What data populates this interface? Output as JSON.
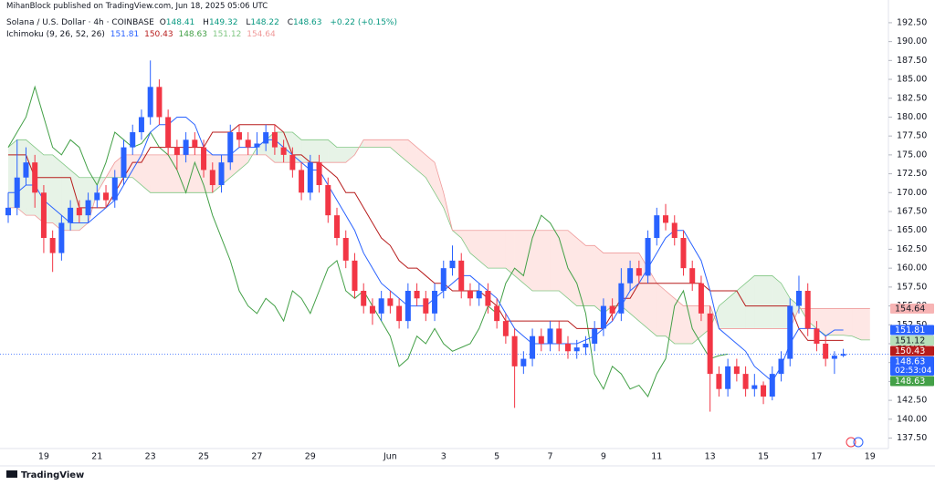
{
  "chart_data": {
    "type": "candlestick",
    "publisher": "MihanBlock published on TradingView.com, Jun 18, 2025 05:06 UTC",
    "title": "Solana / U.S. Dollar · 4h · COINBASE",
    "ohlc_labels": [
      "O",
      "H",
      "L",
      "C"
    ],
    "change": "+0.22 (+0.15%)",
    "indicator": "Ichimoku (9, 26, 52, 26)",
    "countdown": "02:53:04",
    "logo": "TradingView",
    "up_color": "#2962ff",
    "down_color": "#f23645",
    "categories": [
      null,
      null,
      null,
      null,
      "19",
      null,
      null,
      null,
      null,
      null,
      "21",
      null,
      null,
      null,
      null,
      null,
      "23",
      null,
      null,
      null,
      null,
      null,
      "25",
      null,
      null,
      null,
      null,
      null,
      "27",
      null,
      null,
      null,
      null,
      null,
      "29",
      null,
      null,
      null,
      null,
      null,
      null,
      null,
      null,
      "Jun",
      null,
      null,
      null,
      null,
      null,
      "3",
      null,
      null,
      null,
      null,
      null,
      "5",
      null,
      null,
      null,
      null,
      null,
      "7",
      null,
      null,
      null,
      null,
      null,
      "9",
      null,
      null,
      null,
      null,
      null,
      "11",
      null,
      null,
      null,
      null,
      null,
      "13",
      null,
      null,
      null,
      null,
      null,
      "15",
      null,
      null,
      null,
      null,
      null,
      "17",
      null,
      null,
      null,
      null,
      null,
      "19"
    ],
    "open": [
      167,
      168,
      172,
      174,
      170,
      164,
      162,
      166,
      168,
      167,
      169,
      170,
      169,
      172,
      176,
      178,
      180,
      184,
      180,
      176,
      175,
      177,
      176,
      173,
      171,
      174,
      178,
      177,
      176,
      176.5,
      178,
      176,
      175,
      173,
      170,
      174,
      171,
      167,
      164,
      161,
      157,
      155,
      154,
      156,
      155,
      153,
      157,
      156,
      154,
      157,
      160,
      161,
      157,
      156,
      157,
      155,
      153,
      151,
      147,
      148,
      151,
      150,
      152,
      150,
      149,
      149.5,
      150,
      152,
      155,
      154,
      158,
      160,
      159,
      164,
      167,
      166,
      164,
      160,
      158,
      154,
      146,
      144,
      147,
      146,
      144,
      144.5,
      143,
      146,
      148,
      155,
      157,
      152,
      150,
      148,
      148.41,
      null,
      null,
      null
    ],
    "high": [
      170,
      177,
      176,
      175,
      171,
      165,
      167,
      169,
      169,
      170,
      171,
      171,
      173,
      177,
      179,
      181,
      187.5,
      185,
      181,
      177,
      178,
      178,
      177,
      174,
      175,
      179,
      179,
      178,
      178,
      179,
      179,
      177,
      176,
      174,
      175,
      175,
      172,
      168,
      165,
      162,
      158,
      156,
      157,
      157,
      156,
      158,
      158,
      157,
      158,
      161,
      163,
      162,
      158,
      158,
      158,
      156,
      154,
      152,
      149,
      152,
      152,
      153,
      153,
      151,
      150.5,
      151,
      153,
      156,
      156,
      160,
      161,
      161,
      165,
      168,
      168.5,
      167,
      165,
      161,
      159,
      155,
      147,
      148,
      148,
      147,
      146,
      145,
      147,
      149,
      156,
      159,
      158,
      153,
      151,
      149,
      149.32,
      null,
      null,
      null
    ],
    "low": [
      166,
      167,
      171,
      168,
      162,
      159.5,
      161,
      165,
      166,
      166,
      168,
      168,
      168,
      171,
      175,
      177,
      179,
      179,
      175,
      173,
      174,
      175,
      172,
      170,
      170,
      173,
      176,
      175,
      175,
      175.5,
      175,
      174,
      172,
      169,
      169,
      170,
      166,
      163,
      160,
      156,
      154,
      152.5,
      153,
      154,
      152,
      152,
      155,
      153,
      153,
      156,
      159,
      156,
      155,
      155,
      154,
      152,
      150,
      141.5,
      146,
      147,
      149,
      149,
      149,
      148,
      148,
      148.5,
      149,
      151,
      153,
      153,
      157,
      158,
      158,
      163,
      165,
      163,
      159,
      157,
      153,
      141,
      143,
      143,
      145,
      143,
      143,
      142,
      142.5,
      145,
      147,
      154,
      151,
      149,
      147,
      146,
      148.22,
      null,
      null,
      null
    ],
    "close": [
      168,
      172,
      174,
      170,
      164,
      162,
      166,
      168,
      167,
      169,
      170,
      169,
      172,
      176,
      178,
      180,
      184,
      180,
      176,
      175,
      177,
      176,
      173,
      171,
      174,
      178,
      177,
      176,
      176.5,
      178,
      176,
      175,
      173,
      170,
      174,
      171,
      167,
      164,
      161,
      157,
      155,
      154,
      156,
      155,
      153,
      157,
      156,
      154,
      157,
      160,
      161,
      157,
      156,
      157,
      155,
      153,
      151,
      147,
      148,
      151,
      150,
      152,
      150,
      149,
      149.5,
      150,
      152,
      155,
      154,
      158,
      160,
      159,
      164,
      167,
      166,
      164,
      160,
      158,
      154,
      146,
      144,
      147,
      146,
      144,
      144.5,
      143,
      146,
      148,
      155,
      157,
      152,
      150,
      148,
      148.41,
      148.63,
      null,
      null,
      null
    ],
    "series": [
      {
        "color": "#2962ff",
        "values": [
          170,
          170,
          171,
          171,
          169,
          168,
          167,
          166,
          166,
          166,
          167,
          168,
          169,
          171,
          173,
          175,
          178,
          179,
          179,
          180,
          180,
          179,
          176,
          175,
          175,
          175,
          176,
          176,
          176,
          177,
          177,
          176,
          175,
          174,
          173,
          173,
          171,
          169,
          167,
          165,
          162,
          160,
          158,
          157,
          156,
          155,
          155,
          155,
          156,
          157,
          158,
          159,
          159,
          158,
          157,
          156,
          154,
          152,
          151,
          150,
          150,
          150,
          150,
          150,
          150,
          150.5,
          151,
          152,
          153,
          155,
          157,
          158,
          160,
          162,
          164,
          165,
          165,
          163,
          161,
          157,
          152,
          151,
          150,
          149,
          147,
          146,
          145,
          147,
          150,
          152,
          152,
          152,
          151,
          151.81,
          151.81,
          null,
          null,
          null
        ]
      },
      {
        "color": "#b71c1c",
        "values": [
          175,
          175,
          175,
          172,
          172,
          172,
          172,
          172,
          168,
          168,
          168,
          168,
          170,
          172,
          174,
          174,
          176,
          176,
          176,
          176,
          176,
          176,
          176,
          178,
          178,
          178,
          179,
          179,
          179,
          179,
          179,
          178,
          175,
          175,
          174,
          174,
          173,
          172,
          170,
          170,
          168,
          166,
          164,
          163,
          161,
          160,
          160,
          159,
          158,
          158,
          157,
          157,
          157,
          157,
          156,
          155,
          153,
          153,
          153,
          153,
          153,
          153,
          153,
          153,
          152,
          152,
          152,
          152,
          154,
          156,
          156,
          158,
          158,
          158,
          158,
          158,
          158,
          158,
          158,
          157,
          157,
          157,
          157,
          155,
          155,
          155,
          155,
          155,
          155,
          152,
          150.43,
          150.43,
          150.43,
          150.43,
          150.43,
          null,
          null,
          null
        ]
      },
      {
        "color": "#43a047",
        "values": [
          176,
          178,
          180,
          184,
          180,
          176,
          175,
          177,
          176,
          173,
          171,
          174,
          178,
          177,
          176,
          176.5,
          178,
          176,
          175,
          173,
          170,
          174,
          171,
          167,
          164,
          161,
          157,
          155,
          154,
          156,
          155,
          153,
          157,
          156,
          154,
          157,
          160,
          161,
          157,
          156,
          157,
          155,
          153,
          151,
          147,
          148,
          151,
          150,
          152,
          150,
          149,
          149.5,
          150,
          152,
          155,
          154,
          158,
          160,
          159,
          164,
          167,
          166,
          164,
          160,
          158,
          154,
          146,
          144,
          147,
          146,
          144,
          144.5,
          143,
          146,
          148,
          155,
          157,
          152,
          150,
          148,
          148.41,
          148.63,
          null,
          null,
          null,
          null,
          null,
          null,
          null,
          null,
          null,
          null,
          null,
          null,
          null,
          null,
          null,
          null
        ]
      },
      {
        "color": "#81c784",
        "values": [
          176,
          177,
          177,
          176,
          175,
          175,
          174,
          173,
          172,
          172,
          172,
          172,
          172,
          172,
          172,
          171,
          170,
          170,
          170,
          170,
          170,
          170,
          170,
          170,
          171,
          172,
          173,
          174,
          176,
          177,
          178,
          178,
          178,
          177,
          177,
          177,
          177,
          176,
          176,
          176,
          176,
          176,
          176,
          176,
          175,
          174,
          173,
          172,
          170,
          168,
          165,
          164,
          162,
          161,
          160,
          160,
          160,
          159,
          158,
          157,
          157,
          157,
          157,
          156,
          155,
          155,
          155,
          154,
          155,
          155,
          154,
          153,
          152,
          151,
          151,
          150,
          150,
          150,
          151,
          152,
          155,
          156,
          157,
          158,
          159,
          159,
          159,
          158,
          156,
          155,
          153,
          152,
          151.12,
          151.12,
          151.12,
          151,
          150.5,
          150.5
        ]
      },
      {
        "color": "#ef9a9a",
        "values": [
          168,
          168,
          167,
          167,
          166,
          166,
          165,
          165,
          165,
          166,
          170,
          172,
          174,
          175,
          175,
          175,
          175,
          175,
          175,
          175,
          175,
          175,
          175,
          175,
          175,
          175,
          175,
          175,
          175,
          175,
          174,
          174,
          174,
          174,
          174,
          174,
          174,
          174,
          174,
          175,
          177,
          177,
          177,
          177,
          177,
          177,
          176,
          175,
          174,
          170,
          165,
          165,
          165,
          165,
          165,
          165,
          165,
          165,
          165,
          165,
          165,
          165,
          165,
          165,
          164,
          163,
          163,
          162,
          162,
          162,
          162,
          162,
          160,
          158,
          157,
          156,
          155,
          155,
          155,
          155,
          152,
          152,
          152,
          152,
          152,
          152,
          152,
          152,
          152,
          154.64,
          154.64,
          154.64,
          154.64,
          154.64,
          154.64,
          154.64,
          154.64,
          154.64
        ]
      }
    ],
    "cloud_up_color": "rgba(67,160,71,0.13)",
    "cloud_down_color": "rgba(244,67,54,0.13)",
    "ylim": [
      136.6,
      194.3
    ],
    "yticks": [
      {
        "value": 137.5,
        "label": "137.50"
      },
      {
        "value": 140,
        "label": "140.00"
      },
      {
        "value": 142.5,
        "label": "142.50"
      },
      {
        "value": 145,
        "label": "145.00"
      },
      {
        "value": 147.5,
        "label": "147.50"
      },
      {
        "value": 150,
        "label": "150.00"
      },
      {
        "value": 152.5,
        "label": "152.50"
      },
      {
        "value": 155,
        "label": "155.00"
      },
      {
        "value": 157.5,
        "label": "157.50"
      },
      {
        "value": 160,
        "label": "160.00"
      },
      {
        "value": 162.5,
        "label": "162.50"
      },
      {
        "value": 165,
        "label": "165.00"
      },
      {
        "value": 167.5,
        "label": "167.50"
      },
      {
        "value": 170,
        "label": "170.00"
      },
      {
        "value": 172.5,
        "label": "172.50"
      },
      {
        "value": 175,
        "label": "175.00"
      },
      {
        "value": 177.5,
        "label": "177.50"
      },
      {
        "value": 180,
        "label": "180.00"
      },
      {
        "value": 182.5,
        "label": "182.50"
      },
      {
        "value": 185,
        "label": "185.00"
      },
      {
        "value": 187.5,
        "label": "187.50"
      },
      {
        "value": 190,
        "label": "190.00"
      },
      {
        "value": 192.5,
        "label": "192.50"
      }
    ],
    "grid": false
  }
}
